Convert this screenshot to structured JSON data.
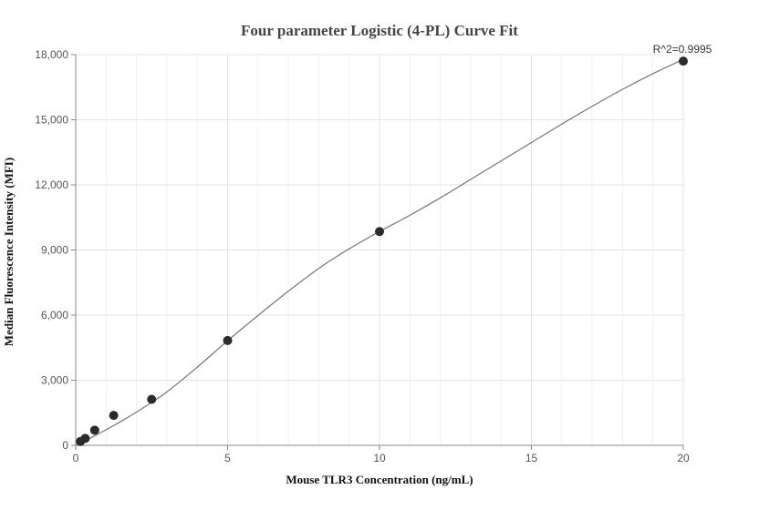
{
  "chart_data": {
    "type": "scatter",
    "title": "Four parameter Logistic (4-PL) Curve Fit",
    "xlabel": "Mouse TLR3 Concentration (ng/mL)",
    "ylabel": "Median Fluorescence Intensity (MFI)",
    "xlim": [
      0,
      20
    ],
    "ylim": [
      0,
      18000
    ],
    "x_ticks": [
      0,
      5,
      10,
      15,
      20
    ],
    "x_tick_labels": [
      "0",
      "5",
      "10",
      "15",
      "20"
    ],
    "y_ticks": [
      0,
      3000,
      6000,
      9000,
      12000,
      15000,
      18000
    ],
    "y_tick_labels": [
      "0",
      "3,000",
      "6,000",
      "9,000",
      "12,000",
      "15,000",
      "18,000"
    ],
    "grid": true,
    "annotation": "R^2=0.9995",
    "series": [
      {
        "x": [
          0.156,
          0.313,
          0.625,
          1.25,
          2.5,
          5,
          10,
          20
        ],
        "y": [
          180,
          320,
          700,
          1380,
          2120,
          4830,
          9850,
          17700
        ],
        "color": "#2b2b2b"
      }
    ],
    "fit_curve": {
      "x": [
        0,
        0.5,
        1,
        1.5,
        2,
        2.5,
        3,
        4,
        5,
        6,
        7,
        8,
        9,
        10,
        11,
        12,
        13,
        14,
        15,
        16,
        17,
        18,
        19,
        20
      ],
      "y": [
        0,
        350,
        720,
        1110,
        1530,
        1980,
        2460,
        3600,
        4820,
        5980,
        7100,
        8150,
        9050,
        9850,
        10600,
        11400,
        12250,
        13100,
        13950,
        14800,
        15620,
        16400,
        17120,
        17780
      ],
      "color": "#777777"
    }
  }
}
